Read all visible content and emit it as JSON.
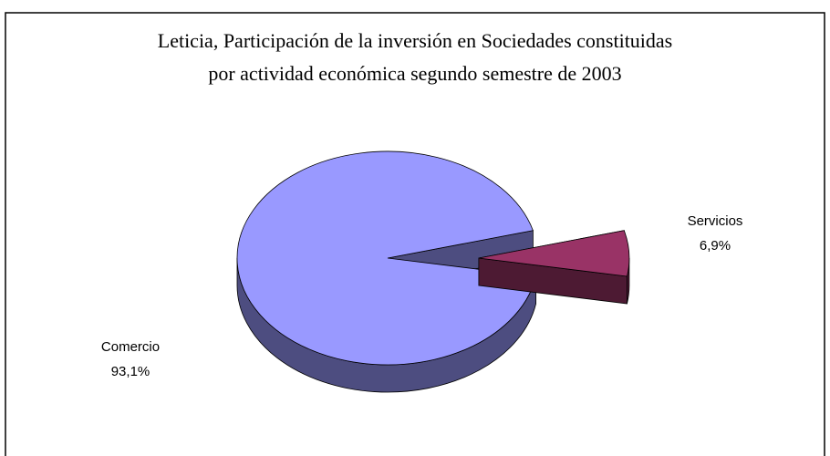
{
  "chart_data": {
    "type": "pie3d",
    "title": [
      "Leticia, Participación de la inversión en Sociedades constituidas",
      "por actividad económica segundo semestre de 2003"
    ],
    "categories": [
      "Comercio",
      "Servicios"
    ],
    "values": [
      93.1,
      6.9
    ],
    "value_labels": [
      "93,1%",
      "6,9%"
    ],
    "colors": [
      "#9999ff",
      "#993366"
    ]
  }
}
